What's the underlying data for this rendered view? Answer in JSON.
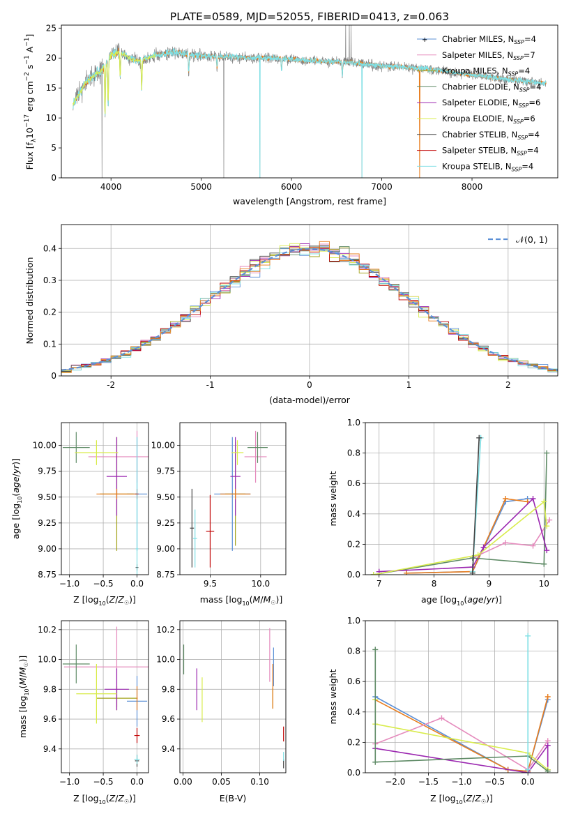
{
  "figure": {
    "title": "PLATE=0589, MJD=52055, FIBERID=0413, z=0.063"
  },
  "colors": {
    "chabrier_miles": "#5b8fd6",
    "salpeter_miles": "#e58bbd",
    "kroupa_miles": "#a3a31d",
    "chabrier_elodie": "#5e8a65",
    "salpeter_elodie": "#9b27b0",
    "kroupa_elodie": "#d9ec4c",
    "chabrier_stelib": "#444444",
    "salpeter_stelib": "#c00000",
    "kroupa_stelib": "#7fdfe4",
    "orange": "#e87d1e"
  },
  "chart_data": [
    {
      "id": "spectrum",
      "type": "line",
      "title": "PLATE=0589, MJD=52055, FIBERID=0413, z=0.063",
      "xlabel": "wavelength [Angstrom, rest frame]",
      "ylabel": "Flux [f_λ 10^-17 erg cm^-2 s^-1 A^-1]",
      "xlim": [
        3450,
        8950
      ],
      "ylim": [
        0,
        25.5
      ],
      "xticks": [
        4000,
        5000,
        6000,
        7000,
        8000
      ],
      "yticks": [
        0,
        5,
        10,
        15,
        20,
        25
      ],
      "grid": false,
      "legend_position": "upper-right",
      "legend": [
        "Chabrier MILES, N_SSP=4",
        "Salpeter MILES, N_SSP=7",
        "Kroupa MILES, N_SSP=4",
        "Chabrier ELODIE, N_SSP=4",
        "Salpeter ELODIE, N_SSP=6",
        "Kroupa ELODIE, N_SSP=6",
        "Chabrier STELIB, N_SSP=4",
        "Salpeter STELIB, N_SSP=4",
        "Kroupa STELIB, N_SSP=4"
      ],
      "continuum": [
        [
          3580,
          12.5
        ],
        [
          3650,
          14
        ],
        [
          3700,
          15.5
        ],
        [
          3800,
          17
        ],
        [
          3900,
          18
        ],
        [
          4000,
          20.5
        ],
        [
          4100,
          21
        ],
        [
          4200,
          20
        ],
        [
          4300,
          19.5
        ],
        [
          4500,
          20.5
        ],
        [
          4700,
          21
        ],
        [
          4900,
          20.5
        ],
        [
          5100,
          20.3
        ],
        [
          5300,
          20.2
        ],
        [
          5500,
          20
        ],
        [
          5800,
          20
        ],
        [
          6000,
          19.8
        ],
        [
          6300,
          19.5
        ],
        [
          6600,
          19.3
        ],
        [
          6800,
          19
        ],
        [
          7000,
          18.7
        ],
        [
          7200,
          18.5
        ],
        [
          7400,
          18.3
        ],
        [
          7600,
          18
        ],
        [
          7800,
          17.6
        ],
        [
          8000,
          17.2
        ],
        [
          8200,
          16.8
        ],
        [
          8400,
          16.4
        ],
        [
          8600,
          16.1
        ],
        [
          8800,
          15.8
        ]
      ]
    },
    {
      "id": "residuals",
      "type": "step",
      "xlabel": "(data-model)/error",
      "ylabel": "Normed distribution",
      "xlim": [
        -2.5,
        2.5
      ],
      "ylim": [
        0,
        0.475
      ],
      "xticks": [
        -2,
        -1,
        0,
        1,
        2
      ],
      "yticks": [
        0.0,
        0.1,
        0.2,
        0.3,
        0.4
      ],
      "grid": true,
      "legend": [
        "N(0,1)"
      ],
      "legend_position": "upper-right"
    },
    {
      "id": "age_vs_Z",
      "type": "errorbar",
      "xlabel": "Z [log10(Z/Z☉)]",
      "ylabel": "age  [log10(age/yr)]",
      "xlim": [
        -1.12,
        0.17
      ],
      "ylim": [
        8.75,
        10.22
      ],
      "xticks": [
        -1.0,
        -0.5,
        0.0
      ],
      "xtick_labels": [
        "−1.0",
        "−0.5",
        "0.0"
      ],
      "yticks": [
        8.75,
        9.0,
        9.25,
        9.5,
        9.75,
        10.0
      ],
      "ytick_labels": [
        "8.75",
        "9.00",
        "9.25",
        "9.50",
        "9.75",
        "10.00"
      ],
      "grid": true,
      "points": [
        {
          "c": "chabrier_miles",
          "x": 0.0,
          "xe": 0.15,
          "y": 9.53,
          "ye": 0.55
        },
        {
          "c": "salpeter_miles",
          "x": 0.0,
          "xe": 0.72,
          "y": 9.89,
          "ye": 0.25
        },
        {
          "c": "kroupa_miles",
          "x": -0.3,
          "xe": 0.25,
          "y": 9.53,
          "ye": 0.55
        },
        {
          "c": "chabrier_elodie",
          "x": -0.9,
          "xe": 0.2,
          "y": 9.98,
          "ye": 0.15
        },
        {
          "c": "salpeter_elodie",
          "x": -0.3,
          "xe": 0.15,
          "y": 9.7,
          "ye": 0.38
        },
        {
          "c": "kroupa_elodie",
          "x": -0.6,
          "xe": 0.32,
          "y": 9.93,
          "ye": 0.12
        },
        {
          "c": "orange",
          "x": -0.3,
          "xe": 0.3,
          "y": 9.53,
          "ye": 0.05
        },
        {
          "c": "chabrier_stelib",
          "x": 0.0,
          "xe": 0.02,
          "y": 8.82,
          "ye": 0.03
        },
        {
          "c": "salpeter_stelib",
          "x": 0.0,
          "xe": 0.02,
          "y": 9.53,
          "ye": 0.05
        },
        {
          "c": "kroupa_stelib",
          "x": 0.0,
          "xe": 0.02,
          "y": 9.0,
          "ye": 1.08
        }
      ]
    },
    {
      "id": "age_vs_mass",
      "type": "errorbar",
      "xlabel": "mass [log10(M/M☉)]",
      "ylabel": "",
      "xlim": [
        9.2,
        10.25
      ],
      "ylim": [
        8.75,
        10.22
      ],
      "xticks": [
        9.5,
        10.0
      ],
      "xtick_labels": [
        "9.5",
        "10.0"
      ],
      "yticks": [
        8.75,
        9.0,
        9.25,
        9.5,
        9.75,
        10.0
      ],
      "ytick_labels": [
        "8.75",
        "9.00",
        "9.25",
        "9.50",
        "9.75",
        "10.00"
      ],
      "grid": true,
      "points": [
        {
          "c": "chabrier_miles",
          "x": 9.72,
          "xe": 0.18,
          "y": 9.53,
          "ye": 0.55
        },
        {
          "c": "salpeter_miles",
          "x": 9.95,
          "xe": 0.11,
          "y": 9.89,
          "ye": 0.25
        },
        {
          "c": "kroupa_miles",
          "x": 9.75,
          "xe": 0.1,
          "y": 9.53,
          "ye": 0.5
        },
        {
          "c": "chabrier_elodie",
          "x": 9.97,
          "xe": 0.1,
          "y": 9.98,
          "ye": 0.15
        },
        {
          "c": "salpeter_elodie",
          "x": 9.75,
          "xe": 0.05,
          "y": 9.7,
          "ye": 0.38
        },
        {
          "c": "kroupa_elodie",
          "x": 9.77,
          "xe": 0.06,
          "y": 9.93,
          "ye": 0.12
        },
        {
          "c": "orange",
          "x": 9.75,
          "xe": 0.15,
          "y": 9.53,
          "ye": 0.05
        },
        {
          "c": "chabrier_stelib",
          "x": 9.32,
          "xe": 0.02,
          "y": 9.2,
          "ye": 0.38
        },
        {
          "c": "salpeter_stelib",
          "x": 9.5,
          "xe": 0.04,
          "y": 9.17,
          "ye": 0.35
        },
        {
          "c": "kroupa_stelib",
          "x": 9.35,
          "xe": 0.02,
          "y": 9.1,
          "ye": 0.28
        }
      ]
    },
    {
      "id": "weight_vs_age",
      "type": "line",
      "xlabel": "age  [log10(age/yr)]",
      "ylabel": "mass weight",
      "xlim": [
        6.75,
        10.25
      ],
      "ylim": [
        0,
        1.0
      ],
      "xticks": [
        7,
        8,
        9,
        10
      ],
      "xtick_labels": [
        "7",
        "8",
        "9",
        "10"
      ],
      "yticks": [
        0.0,
        0.2,
        0.4,
        0.6,
        0.8,
        1.0
      ],
      "ytick_labels": [
        "0.0",
        "0.2",
        "0.4",
        "0.6",
        "0.8",
        "1.0"
      ],
      "grid": true,
      "series": [
        {
          "c": "chabrier_miles",
          "x": [
            7.5,
            8.7,
            9.3,
            9.7
          ],
          "y": [
            0.01,
            0.02,
            0.48,
            0.5
          ]
        },
        {
          "c": "orange",
          "x": [
            7.5,
            8.7,
            9.3,
            9.7
          ],
          "y": [
            0.01,
            0.02,
            0.5,
            0.48
          ]
        },
        {
          "c": "salpeter_miles",
          "x": [
            8.7,
            9.3,
            9.8,
            10.1
          ],
          "y": [
            0.11,
            0.21,
            0.19,
            0.36
          ]
        },
        {
          "c": "chabrier_elodie",
          "x": [
            6.9,
            8.7,
            10.0,
            10.05
          ],
          "y": [
            0.0,
            0.11,
            0.07,
            0.8
          ]
        },
        {
          "c": "salpeter_elodie",
          "x": [
            7.0,
            8.7,
            8.9,
            9.8,
            10.05
          ],
          "y": [
            0.02,
            0.05,
            0.18,
            0.5,
            0.16
          ]
        },
        {
          "c": "kroupa_elodie",
          "x": [
            6.9,
            8.8,
            10.0,
            10.05
          ],
          "y": [
            0.0,
            0.13,
            0.48,
            0.32
          ]
        },
        {
          "c": "kroupa_stelib",
          "x": [
            8.7,
            8.85
          ],
          "y": [
            0.02,
            0.9
          ]
        },
        {
          "c": "chabrier_stelib",
          "x": [
            8.7,
            8.82
          ],
          "y": [
            0.01,
            0.9
          ]
        }
      ]
    },
    {
      "id": "mass_vs_Z",
      "type": "errorbar",
      "xlabel": "Z [log10(Z/Z☉)]",
      "ylabel": "mass [log10(M/M☉)]",
      "xlim": [
        -1.12,
        0.17
      ],
      "ylim": [
        9.24,
        10.26
      ],
      "xticks": [
        -1.0,
        -0.5,
        0.0
      ],
      "xtick_labels": [
        "−1.0",
        "−0.5",
        "0.0"
      ],
      "yticks": [
        9.4,
        9.6,
        9.8,
        10.0,
        10.2
      ],
      "ytick_labels": [
        "9.4",
        "9.6",
        "9.8",
        "10.0",
        "10.2"
      ],
      "grid": true,
      "points": [
        {
          "c": "chabrier_miles",
          "x": 0.0,
          "xe": 0.15,
          "y": 9.72,
          "ye": 0.17
        },
        {
          "c": "salpeter_miles",
          "x": -0.3,
          "xe": 0.78,
          "y": 9.95,
          "ye": 0.27
        },
        {
          "c": "kroupa_miles",
          "x": -0.3,
          "xe": 0.3,
          "y": 9.74,
          "ye": 0.08
        },
        {
          "c": "chabrier_elodie",
          "x": -0.9,
          "xe": 0.2,
          "y": 9.97,
          "ye": 0.13
        },
        {
          "c": "salpeter_elodie",
          "x": -0.3,
          "xe": 0.18,
          "y": 9.8,
          "ye": 0.14
        },
        {
          "c": "kroupa_elodie",
          "x": -0.6,
          "xe": 0.3,
          "y": 9.77,
          "ye": 0.2
        },
        {
          "c": "orange",
          "x": 0.0,
          "xe": 0.01,
          "y": 9.74,
          "ye": 0.08
        },
        {
          "c": "chabrier_stelib",
          "x": 0.0,
          "xe": 0.03,
          "y": 9.32,
          "ye": 0.04
        },
        {
          "c": "salpeter_stelib",
          "x": 0.0,
          "xe": 0.04,
          "y": 9.49,
          "ye": 0.05
        },
        {
          "c": "kroupa_stelib",
          "x": 0.0,
          "xe": 0.04,
          "y": 9.33,
          "ye": 0.03
        }
      ]
    },
    {
      "id": "mass_vs_ebv",
      "type": "errorbar",
      "xlabel": "E(B-V)",
      "ylabel": "",
      "xlim": [
        -0.004,
        0.134
      ],
      "ylim": [
        9.24,
        10.26
      ],
      "xticks": [
        0.0,
        0.05,
        0.1
      ],
      "xtick_labels": [
        "0.00",
        "0.05",
        "0.10"
      ],
      "yticks": [
        9.4,
        9.6,
        9.8,
        10.0,
        10.2
      ],
      "ytick_labels": [
        "9.4",
        "9.6",
        "9.8",
        "10.0",
        "10.2"
      ],
      "grid": true,
      "points": [
        {
          "c": "chabrier_miles",
          "x": 0.118,
          "y": 9.95,
          "ye": 0.13
        },
        {
          "c": "salpeter_miles",
          "x": 0.113,
          "y": 10.03,
          "ye": 0.18
        },
        {
          "c": "kroupa_miles",
          "x": 0.117,
          "y": 9.74,
          "ye": 0.07
        },
        {
          "c": "chabrier_elodie",
          "x": 0.001,
          "y": 10.0,
          "ye": 0.1
        },
        {
          "c": "salpeter_elodie",
          "x": 0.018,
          "y": 9.8,
          "ye": 0.14
        },
        {
          "c": "kroupa_elodie",
          "x": 0.025,
          "y": 9.73,
          "ye": 0.15
        },
        {
          "c": "orange",
          "x": 0.117,
          "y": 9.82,
          "ye": 0.15
        },
        {
          "c": "chabrier_stelib",
          "x": 0.131,
          "y": 9.3,
          "ye": 0.03
        },
        {
          "c": "salpeter_stelib",
          "x": 0.131,
          "y": 9.5,
          "ye": 0.05
        },
        {
          "c": "kroupa_stelib",
          "x": 0.131,
          "y": 9.35,
          "ye": 0.03
        }
      ]
    },
    {
      "id": "weight_vs_Z",
      "type": "line",
      "xlabel": "Z [log10(Z/Z☉)]",
      "ylabel": "mass weight",
      "xlim": [
        -2.45,
        0.45
      ],
      "ylim": [
        0,
        1.0
      ],
      "xticks": [
        -2.0,
        -1.5,
        -1.0,
        -0.5,
        0.0
      ],
      "xtick_labels": [
        "−2.0",
        "−1.5",
        "−1.0",
        "−0.5",
        "0.0"
      ],
      "yticks": [
        0.0,
        0.2,
        0.4,
        0.6,
        0.8,
        1.0
      ],
      "ytick_labels": [
        "0.0",
        "0.2",
        "0.4",
        "0.6",
        "0.8",
        "1.0"
      ],
      "grid": true,
      "series": [
        {
          "c": "chabrier_miles",
          "x": [
            -2.3,
            -0.3,
            0.0,
            0.3
          ],
          "y": [
            0.5,
            0.02,
            0.01,
            0.48
          ]
        },
        {
          "c": "orange",
          "x": [
            -2.3,
            -0.3,
            0.0,
            0.3
          ],
          "y": [
            0.48,
            0.02,
            0.01,
            0.5
          ]
        },
        {
          "c": "salpeter_miles",
          "x": [
            -2.3,
            -1.3,
            0.0,
            0.3
          ],
          "y": [
            0.19,
            0.36,
            0.02,
            0.21
          ]
        },
        {
          "c": "salpeter_elodie",
          "x": [
            -2.3,
            0.0,
            0.3,
            0.3
          ],
          "y": [
            0.16,
            0.0,
            0.18,
            0.02
          ]
        },
        {
          "c": "kroupa_elodie",
          "x": [
            -2.3,
            -2.3,
            0.0,
            0.3
          ],
          "y": [
            0.48,
            0.32,
            0.13,
            0.02
          ]
        },
        {
          "c": "chabrier_elodie",
          "x": [
            -2.3,
            -2.3,
            0.0,
            0.3
          ],
          "y": [
            0.81,
            0.07,
            0.11,
            0.01
          ]
        },
        {
          "c": "kroupa_stelib",
          "x": [
            0.0,
            0.0
          ],
          "y": [
            0.02,
            0.9
          ]
        }
      ]
    }
  ]
}
